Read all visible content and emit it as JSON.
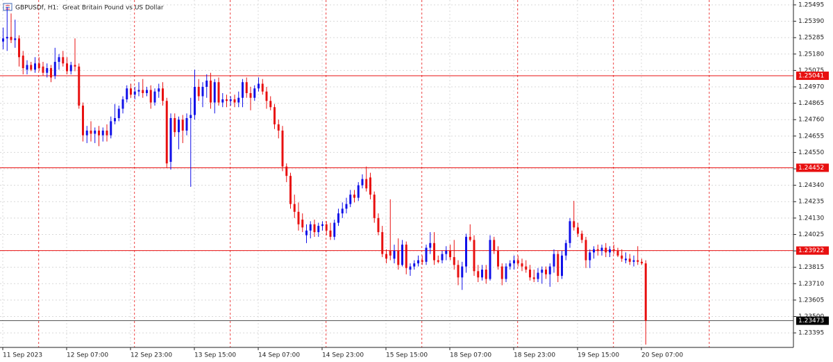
{
  "chart_data": {
    "type": "candlestick",
    "title": "GBPUSDf, H1:  Great Britain Pound vs US Dollar",
    "categories": [
      "11 Sep 2023",
      null,
      null,
      null,
      null,
      null,
      null,
      null,
      null,
      null,
      null,
      null,
      null,
      null,
      null,
      null,
      "12 Sep 07:00",
      null,
      null,
      null,
      null,
      null,
      null,
      null,
      null,
      null,
      null,
      null,
      null,
      null,
      null,
      null,
      "12 Sep 23:00",
      null,
      null,
      null,
      null,
      null,
      null,
      null,
      null,
      null,
      null,
      null,
      null,
      null,
      null,
      null,
      "13 Sep 15:00",
      null,
      null,
      null,
      null,
      null,
      null,
      null,
      null,
      null,
      null,
      null,
      null,
      null,
      null,
      null,
      "14 Sep 07:00",
      null,
      null,
      null,
      null,
      null,
      null,
      null,
      null,
      null,
      null,
      null,
      null,
      null,
      null,
      null,
      "14 Sep 23:00",
      null,
      null,
      null,
      null,
      null,
      null,
      null,
      null,
      null,
      null,
      null,
      null,
      null,
      null,
      null,
      "15 Sep 15:00",
      null,
      null,
      null,
      null,
      null,
      null,
      null,
      null,
      null,
      null,
      null,
      null,
      null,
      null,
      null,
      "18 Sep 07:00",
      null,
      null,
      null,
      null,
      null,
      null,
      null,
      null,
      null,
      null,
      null,
      null,
      null,
      null,
      null,
      "18 Sep 23:00",
      null,
      null,
      null,
      null,
      null,
      null,
      null,
      null,
      null,
      null,
      null,
      null,
      null,
      null,
      null,
      "19 Sep 15:00",
      null,
      null,
      null,
      null,
      null,
      null,
      null,
      null,
      null,
      null,
      null,
      null,
      null,
      null,
      null,
      "20 Sep 07:00",
      null
    ],
    "open": [
      1.2526,
      1.2528,
      1.2529,
      1.2527,
      1.2528,
      1.2517,
      1.2508,
      1.2511,
      1.2508,
      1.2512,
      1.251,
      1.2506,
      1.2509,
      1.2504,
      1.2513,
      1.2516,
      1.2512,
      1.2507,
      1.2511,
      1.251,
      1.2485,
      1.2466,
      1.2469,
      1.2467,
      1.2469,
      1.2466,
      1.2469,
      1.2466,
      1.2475,
      1.2477,
      1.2483,
      1.2489,
      1.2496,
      1.2492,
      1.2494,
      1.2495,
      1.2493,
      1.2495,
      1.2487,
      1.2494,
      1.2496,
      1.2488,
      1.2449,
      1.2477,
      1.2468,
      1.2476,
      1.2469,
      1.2477,
      1.2479,
      1.2497,
      1.2491,
      1.2497,
      1.2501,
      1.2487,
      1.25,
      1.2487,
      1.2489,
      1.2488,
      1.2489,
      1.2487,
      1.249,
      1.25,
      1.2493,
      1.249,
      1.2496,
      1.2499,
      1.2494,
      1.2488,
      1.2484,
      1.2473,
      1.2469,
      1.2446,
      1.244,
      1.2422,
      1.2417,
      1.2412,
      1.2402,
      1.2405,
      1.2409,
      1.2404,
      1.2408,
      1.2409,
      1.2405,
      1.2401,
      1.241,
      1.2416,
      1.2419,
      1.2422,
      1.2428,
      1.2426,
      1.2434,
      1.2438,
      1.2439,
      1.2428,
      1.2413,
      1.2404,
      1.239,
      1.2392,
      1.2387,
      1.2392,
      1.2383,
      1.2396,
      1.238,
      1.2382,
      1.2384,
      1.2386,
      1.2385,
      1.2394,
      1.2397,
      1.2386,
      1.2386,
      1.239,
      1.2392,
      1.2388,
      1.2383,
      1.2375,
      1.2382,
      1.2401,
      1.2399,
      1.2379,
      1.2375,
      1.238,
      1.2374,
      1.2399,
      1.2392,
      1.2382,
      1.2374,
      1.2382,
      1.2384,
      1.2386,
      1.2384,
      1.2382,
      1.238,
      1.2375,
      1.2374,
      1.2378,
      1.238,
      1.2377,
      1.2382,
      1.239,
      1.2376,
      1.2389,
      1.2397,
      1.2411,
      1.2407,
      1.2403,
      1.2399,
      1.2386,
      1.2391,
      1.2393,
      1.2392,
      1.2394,
      1.2391,
      1.2393,
      1.2392,
      1.2389,
      1.2386,
      1.2387,
      1.2385,
      1.2386,
      1.2385,
      1.2384
    ],
    "high": [
      1.2535,
      1.2548,
      1.2544,
      1.254,
      1.253,
      1.252,
      1.2514,
      1.2513,
      1.2516,
      1.2516,
      1.2513,
      1.2512,
      1.2511,
      1.2522,
      1.2518,
      1.252,
      1.2516,
      1.2513,
      1.2528,
      1.2512,
      1.2487,
      1.2472,
      1.2475,
      1.2471,
      1.2472,
      1.2471,
      1.2473,
      1.2478,
      1.2486,
      1.2485,
      1.2491,
      1.2498,
      1.2499,
      1.2497,
      1.25,
      1.2502,
      1.2497,
      1.2498,
      1.2496,
      1.2499,
      1.25,
      1.249,
      1.248,
      1.248,
      1.2478,
      1.2479,
      1.248,
      1.249,
      1.2508,
      1.2502,
      1.25,
      1.2505,
      1.2506,
      1.2502,
      1.2503,
      1.2493,
      1.2492,
      1.2491,
      1.2492,
      1.2494,
      1.2502,
      1.2503,
      1.2497,
      1.2498,
      1.2503,
      1.2502,
      1.2497,
      1.2491,
      1.2486,
      1.2476,
      1.2472,
      1.2448,
      1.2442,
      1.2428,
      1.2423,
      1.2416,
      1.2409,
      1.2411,
      1.2412,
      1.241,
      1.2411,
      1.2411,
      1.241,
      1.2412,
      1.2419,
      1.2423,
      1.2426,
      1.2431,
      1.2431,
      1.2436,
      1.2441,
      1.2446,
      1.2442,
      1.243,
      1.2416,
      1.2408,
      1.2393,
      1.2425,
      1.2396,
      1.24,
      1.2399,
      1.2398,
      1.2384,
      1.2386,
      1.2389,
      1.2389,
      1.2396,
      1.2404,
      1.2404,
      1.2389,
      1.2392,
      1.2395,
      1.2396,
      1.2399,
      1.2386,
      1.2385,
      1.2403,
      1.2409,
      1.2402,
      1.2383,
      1.2383,
      1.2383,
      1.2402,
      1.2401,
      1.2395,
      1.2384,
      1.2384,
      1.2386,
      1.2389,
      1.2389,
      1.2387,
      1.2386,
      1.2383,
      1.238,
      1.2381,
      1.2382,
      1.2382,
      1.2384,
      1.2393,
      1.2392,
      1.2392,
      1.2399,
      1.2413,
      1.2424,
      1.241,
      1.2405,
      1.2401,
      1.2393,
      1.2395,
      1.2396,
      1.2396,
      1.2397,
      1.2395,
      1.2396,
      1.2394,
      1.2393,
      1.2391,
      1.239,
      1.2389,
      1.2395,
      1.2387,
      1.2386
    ],
    "low": [
      1.2521,
      1.252,
      1.2525,
      1.2522,
      1.251,
      1.2505,
      1.2505,
      1.2507,
      1.2506,
      1.2507,
      1.2504,
      1.2503,
      1.25,
      1.2502,
      1.2508,
      1.251,
      1.2505,
      1.2505,
      1.2507,
      1.2483,
      1.2462,
      1.2461,
      1.2462,
      1.2461,
      1.2459,
      1.2462,
      1.2462,
      1.2464,
      1.2473,
      1.2475,
      1.248,
      1.2487,
      1.249,
      1.2489,
      1.2491,
      1.249,
      1.2491,
      1.2483,
      1.2485,
      1.249,
      1.2485,
      1.2445,
      1.2444,
      1.2465,
      1.2457,
      1.2461,
      1.2466,
      1.2433,
      1.2476,
      1.2488,
      1.2484,
      1.249,
      1.2483,
      1.248,
      1.2485,
      1.2484,
      1.2484,
      1.2485,
      1.2484,
      1.2484,
      1.2484,
      1.249,
      1.2482,
      1.2488,
      1.2494,
      1.2492,
      1.2483,
      1.2482,
      1.247,
      1.2464,
      1.2443,
      1.2436,
      1.2419,
      1.2413,
      1.2405,
      1.2404,
      1.2397,
      1.24,
      1.2401,
      1.2401,
      1.2405,
      1.2402,
      1.2399,
      1.2399,
      1.2408,
      1.2413,
      1.2416,
      1.242,
      1.2423,
      1.2424,
      1.2432,
      1.243,
      1.2425,
      1.241,
      1.2402,
      1.2388,
      1.2384,
      1.2386,
      1.2384,
      1.238,
      1.2382,
      1.2377,
      1.2376,
      1.238,
      1.2382,
      1.2383,
      1.2383,
      1.239,
      1.2383,
      1.2384,
      1.2384,
      1.2386,
      1.2386,
      1.238,
      1.237,
      1.2367,
      1.2378,
      1.2398,
      1.2376,
      1.2372,
      1.2373,
      1.2371,
      1.2373,
      1.239,
      1.238,
      1.237,
      1.2372,
      1.238,
      1.238,
      1.2382,
      1.2379,
      1.2378,
      1.2373,
      1.2372,
      1.2372,
      1.2371,
      1.2374,
      1.2369,
      1.2378,
      1.2372,
      1.2374,
      1.2386,
      1.2394,
      1.2405,
      1.2401,
      1.2397,
      1.2381,
      1.2381,
      1.2387,
      1.2389,
      1.2389,
      1.2388,
      1.2388,
      1.239,
      1.2388,
      1.2385,
      1.2384,
      1.2383,
      1.2382,
      1.2383,
      1.2383,
      1.2332
    ],
    "close": [
      1.2528,
      1.2529,
      1.2527,
      1.2528,
      1.2516,
      1.2509,
      1.2511,
      1.2508,
      1.2512,
      1.2509,
      1.2506,
      1.2509,
      1.2503,
      1.2513,
      1.2516,
      1.2512,
      1.2507,
      1.2511,
      1.251,
      1.2485,
      1.2466,
      1.2469,
      1.2467,
      1.2469,
      1.2466,
      1.2469,
      1.2466,
      1.2475,
      1.2477,
      1.2483,
      1.2489,
      1.2496,
      1.2492,
      1.2494,
      1.2495,
      1.2493,
      1.2495,
      1.2487,
      1.2494,
      1.2496,
      1.2488,
      1.2448,
      1.2477,
      1.2468,
      1.2476,
      1.2469,
      1.2477,
      1.2479,
      1.2497,
      1.2491,
      1.2497,
      1.2501,
      1.2487,
      1.25,
      1.2487,
      1.2489,
      1.2488,
      1.2489,
      1.2487,
      1.249,
      1.25,
      1.2493,
      1.249,
      1.2496,
      1.2499,
      1.2494,
      1.2488,
      1.2484,
      1.2473,
      1.2469,
      1.2446,
      1.244,
      1.2422,
      1.2417,
      1.2409,
      1.2407,
      1.2405,
      1.2409,
      1.2404,
      1.2408,
      1.2409,
      1.2405,
      1.2401,
      1.241,
      1.2416,
      1.2419,
      1.2422,
      1.2428,
      1.2426,
      1.2434,
      1.2438,
      1.2432,
      1.2428,
      1.2413,
      1.2404,
      1.239,
      1.2387,
      1.2389,
      1.2392,
      1.2383,
      1.2396,
      1.2381,
      1.2382,
      1.2384,
      1.2386,
      1.2385,
      1.2394,
      1.2397,
      1.2386,
      1.2385,
      1.239,
      1.2392,
      1.2388,
      1.2383,
      1.2375,
      1.2382,
      1.2401,
      1.2399,
      1.2379,
      1.2375,
      1.238,
      1.2374,
      1.2399,
      1.2392,
      1.2382,
      1.2374,
      1.2382,
      1.2384,
      1.2386,
      1.2384,
      1.2382,
      1.238,
      1.2375,
      1.2374,
      1.2378,
      1.238,
      1.2377,
      1.2382,
      1.239,
      1.2376,
      1.2389,
      1.2397,
      1.2411,
      1.2407,
      1.2403,
      1.2399,
      1.2386,
      1.2391,
      1.2393,
      1.2392,
      1.2394,
      1.2391,
      1.2393,
      1.2392,
      1.2389,
      1.2387,
      1.2387,
      1.2385,
      1.2386,
      1.2385,
      1.2384,
      1.23473
    ],
    "up_color": "#1010e8",
    "down_color": "#e81010",
    "ylim": [
      1.23302,
      1.25526
    ],
    "yticks": [
      1.25495,
      {
        "value": 1.2539,
        "label": "1.25390"
      },
      1.25285,
      {
        "value": 1.2518,
        "label": "1.25180"
      },
      1.25075,
      {
        "value": 1.2497,
        "label": "1.24970"
      },
      1.24865,
      {
        "value": 1.2476,
        "label": "1.24760"
      },
      1.24655,
      {
        "value": 1.2455,
        "label": "1.24550"
      },
      1.24445,
      {
        "value": 1.2434,
        "label": "1.24340"
      },
      1.24235,
      {
        "value": 1.2413,
        "label": "1.24130"
      },
      1.24025,
      {
        "value": 1.2392,
        "label": "1.23920"
      },
      1.23815,
      {
        "value": 1.2371,
        "label": "1.23710"
      },
      1.23605,
      {
        "value": 1.235,
        "label": "1.23500"
      },
      1.23395
    ],
    "grid": true,
    "levels": [
      1.25041,
      1.24452,
      1.23922
    ],
    "level_color": "#e81010",
    "current_price": 1.23473
  }
}
